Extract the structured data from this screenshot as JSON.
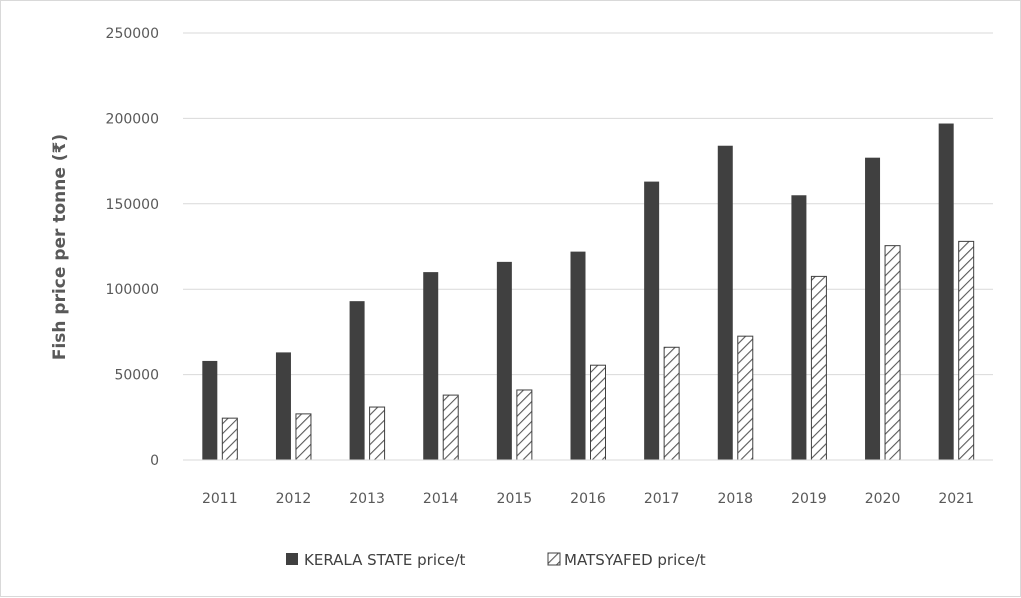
{
  "chart_data": {
    "type": "bar",
    "title": "",
    "xlabel": "",
    "ylabel": "Fish price per tonne (₹)",
    "categories": [
      "2011",
      "2012",
      "2013",
      "2014",
      "2015",
      "2016",
      "2017",
      "2018",
      "2019",
      "2020",
      "2021"
    ],
    "series": [
      {
        "name": "KERALA STATE price/t",
        "values": [
          58000,
          63000,
          93000,
          110000,
          116000,
          122000,
          163000,
          184000,
          155000,
          177000,
          197000
        ],
        "color": "#404040",
        "pattern": "solid"
      },
      {
        "name": "MATSYAFED price/t",
        "values": [
          24500,
          27000,
          31000,
          38000,
          41000,
          55500,
          66000,
          72500,
          107500,
          125500,
          128000
        ],
        "color": "#ffffff",
        "pattern": "diagonal-hatch"
      }
    ],
    "ylim": [
      0,
      250000
    ],
    "yticks": [
      "0",
      "50000",
      "100000",
      "150000",
      "200000",
      "250000"
    ],
    "grid": true,
    "legend": "bottom-center"
  }
}
